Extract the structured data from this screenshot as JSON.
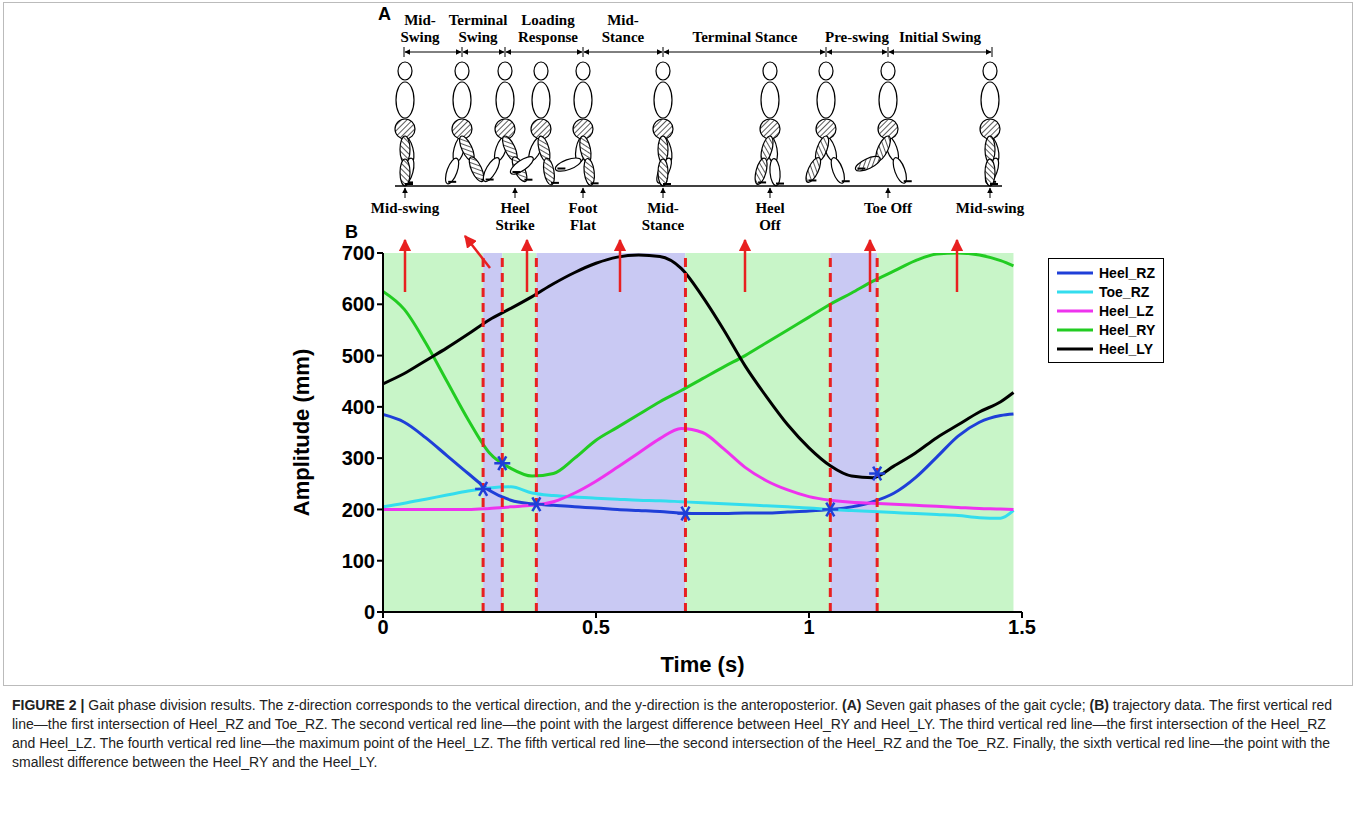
{
  "panel_a": {
    "letter": "A",
    "phases": [
      "Mid-Swing",
      "Terminal Swing",
      "Loading Response",
      "Mid-Stance",
      "Terminal Stance",
      "Pre-swing",
      "Initial Swing"
    ],
    "events": [
      "Mid-swing",
      "Heel Strike",
      "Foot Flat",
      "Mid-Stance",
      "Heel Off",
      "Toe Off",
      "Mid-swing"
    ]
  },
  "chart_data": {
    "type": "line",
    "panel_label": "B",
    "xlabel": "Time (s)",
    "ylabel": "Amplitude (mm)",
    "xlim": [
      0,
      1.5
    ],
    "xticks": [
      0,
      0.5,
      1,
      1.5
    ],
    "ylim": [
      0,
      700
    ],
    "yticks": [
      0,
      100,
      200,
      300,
      400,
      500,
      600,
      700
    ],
    "legend": "right",
    "x": [
      0,
      0.05,
      0.1,
      0.15,
      0.2,
      0.25,
      0.3,
      0.35,
      0.4,
      0.45,
      0.5,
      0.55,
      0.6,
      0.65,
      0.7,
      0.75,
      0.8,
      0.85,
      0.9,
      0.95,
      1,
      1.05,
      1.1,
      1.15,
      1.2,
      1.25,
      1.3,
      1.35,
      1.4,
      1.45,
      1.48
    ],
    "series": [
      {
        "name": "Heel_RZ",
        "color": "#1f3fd8",
        "values": [
          385,
          370,
          340,
          305,
          270,
          237,
          218,
          211,
          208,
          205,
          203,
          200,
          198,
          196,
          193,
          192,
          192,
          193,
          193,
          195,
          197,
          200,
          205,
          215,
          232,
          262,
          302,
          343,
          370,
          383,
          386
        ]
      },
      {
        "name": "Toe_RZ",
        "color": "#33ddee",
        "values": [
          205,
          212,
          220,
          228,
          236,
          242,
          244,
          232,
          227,
          224,
          222,
          220,
          218,
          217,
          215,
          213,
          211,
          209,
          207,
          205,
          203,
          200,
          198,
          196,
          194,
          192,
          190,
          188,
          184,
          183,
          198
        ]
      },
      {
        "name": "Heel_LZ",
        "color": "#ee33ee",
        "values": [
          200,
          200,
          200,
          200,
          200,
          202,
          205,
          208,
          215,
          232,
          255,
          282,
          310,
          338,
          358,
          350,
          318,
          282,
          256,
          238,
          225,
          218,
          214,
          212,
          210,
          208,
          206,
          204,
          202,
          201,
          200
        ]
      },
      {
        "name": "Heel_RY",
        "color": "#22cc22",
        "values": [
          625,
          590,
          525,
          450,
          375,
          310,
          280,
          265,
          270,
          300,
          335,
          360,
          385,
          410,
          432,
          455,
          478,
          500,
          525,
          550,
          575,
          600,
          622,
          645,
          665,
          685,
          698,
          700,
          696,
          685,
          675
        ]
      },
      {
        "name": "Heel_LY",
        "color": "#000000",
        "values": [
          445,
          465,
          490,
          515,
          542,
          570,
          592,
          615,
          640,
          662,
          680,
          692,
          696,
          693,
          670,
          615,
          550,
          480,
          420,
          365,
          320,
          285,
          265,
          262,
          285,
          310,
          340,
          365,
          390,
          410,
          428
        ]
      }
    ],
    "markers": {
      "x": [
        0.235,
        0.28,
        0.36,
        0.71,
        1.05,
        1.16
      ],
      "y": [
        240,
        290,
        210,
        192,
        200,
        270
      ],
      "color": "#1f3fd8",
      "marker": "asterisk"
    },
    "vlines": {
      "x": [
        0.235,
        0.28,
        0.36,
        0.71,
        1.05,
        1.16
      ],
      "color": "#e82020",
      "line_style": "dashed"
    },
    "regions": [
      {
        "start": 0,
        "end": 0.235,
        "color": "#c8f5c8"
      },
      {
        "start": 0.235,
        "end": 0.28,
        "color": "#c9c9f3"
      },
      {
        "start": 0.28,
        "end": 0.36,
        "color": "#c8f5c8"
      },
      {
        "start": 0.36,
        "end": 0.71,
        "color": "#c9c9f3"
      },
      {
        "start": 0.71,
        "end": 1.05,
        "color": "#c8f5c8"
      },
      {
        "start": 1.05,
        "end": 1.16,
        "color": "#c9c9f3"
      },
      {
        "start": 1.16,
        "end": 1.48,
        "color": "#c8f5c8"
      }
    ]
  },
  "caption": {
    "label": "FIGURE 2 |",
    "intro": "Gait phase division results. The z-direction corresponds to the vertical direction, and the y-direction is the anteroposterior.",
    "parts": [
      {
        "label": "(A)",
        "text": "Seven gait phases of the gait cycle;"
      },
      {
        "label": "(B)",
        "text": "trajectory data. The first vertical red line—the first intersection of Heel_RZ and Toe_RZ. The second vertical red line—the point with the largest difference between Heel_RY and Heel_LY. The third vertical red line—the first intersection of the Heel_RZ and Heel_LZ. The fourth vertical red line—the maximum point of the Heel_LZ. The fifth vertical red line—the second intersection of the Heel_RZ and the Toe_RZ. Finally, the sixth vertical red line—the point with the smallest difference between the Heel_RY and the Heel_LY."
      }
    ]
  }
}
